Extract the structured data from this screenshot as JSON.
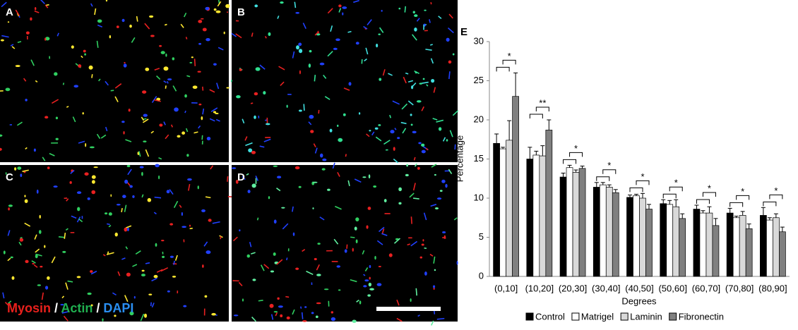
{
  "panels": [
    {
      "label": "A"
    },
    {
      "label": "B"
    },
    {
      "label": "C"
    },
    {
      "label": "D"
    }
  ],
  "stain_legend": [
    {
      "text": "Myosin",
      "color": "#e8201c"
    },
    {
      "text": " / ",
      "color": "#ffffff"
    },
    {
      "text": "Actin",
      "color": "#20b050"
    },
    {
      "text": " / ",
      "color": "#ffffff"
    },
    {
      "text": "DAPI",
      "color": "#2a8ef0"
    }
  ],
  "chart_data": {
    "type": "bar",
    "panel_label": "E",
    "y_label": "Percentage",
    "x_label": "Degrees",
    "categories": [
      "(0,10]",
      "(10,20]",
      "(20,30]",
      "(30,40]",
      "(40,50]",
      "(50,60]",
      "(60,70]",
      "(70,80]",
      "(80,90]"
    ],
    "series": [
      {
        "name": "Control",
        "color": "#000000",
        "values": [
          17,
          15,
          12.7,
          11.4,
          10.1,
          9.3,
          8.6,
          8.1,
          7.8
        ],
        "error": [
          1.2,
          1.5,
          0.5,
          0.6,
          0.3,
          0.5,
          0.5,
          0.6,
          1.0
        ]
      },
      {
        "name": "Matrigel",
        "color": "#ffffff",
        "values": [
          16.3,
          15.5,
          13.9,
          11.7,
          10.3,
          9.2,
          8.1,
          7.5,
          7.2
        ],
        "error": [
          0.2,
          0.5,
          0.3,
          0.3,
          0.2,
          0.5,
          0.3,
          0.2,
          0.3
        ]
      },
      {
        "name": "Laminin",
        "color": "#d9d9d9",
        "values": [
          17.4,
          15.4,
          13.3,
          11.4,
          10.0,
          8.9,
          8.1,
          7.8,
          7.5
        ],
        "error": [
          2.5,
          1.3,
          0.3,
          0.3,
          0.6,
          0.9,
          0.8,
          0.5,
          0.5
        ]
      },
      {
        "name": "Fibronectin",
        "color": "#808080",
        "values": [
          23,
          18.7,
          13.8,
          10.7,
          8.6,
          7.4,
          6.5,
          6.1,
          5.7
        ],
        "error": [
          3,
          1.3,
          0.3,
          0.4,
          0.6,
          0.6,
          0.9,
          0.6,
          0.6
        ]
      }
    ],
    "significance": [
      "*",
      "**",
      "*",
      "*",
      "*",
      "*",
      "*",
      "*",
      "*"
    ],
    "ylim": [
      0,
      30
    ],
    "yticks": [
      0,
      5,
      10,
      15,
      20,
      25,
      30
    ],
    "grid": false
  }
}
